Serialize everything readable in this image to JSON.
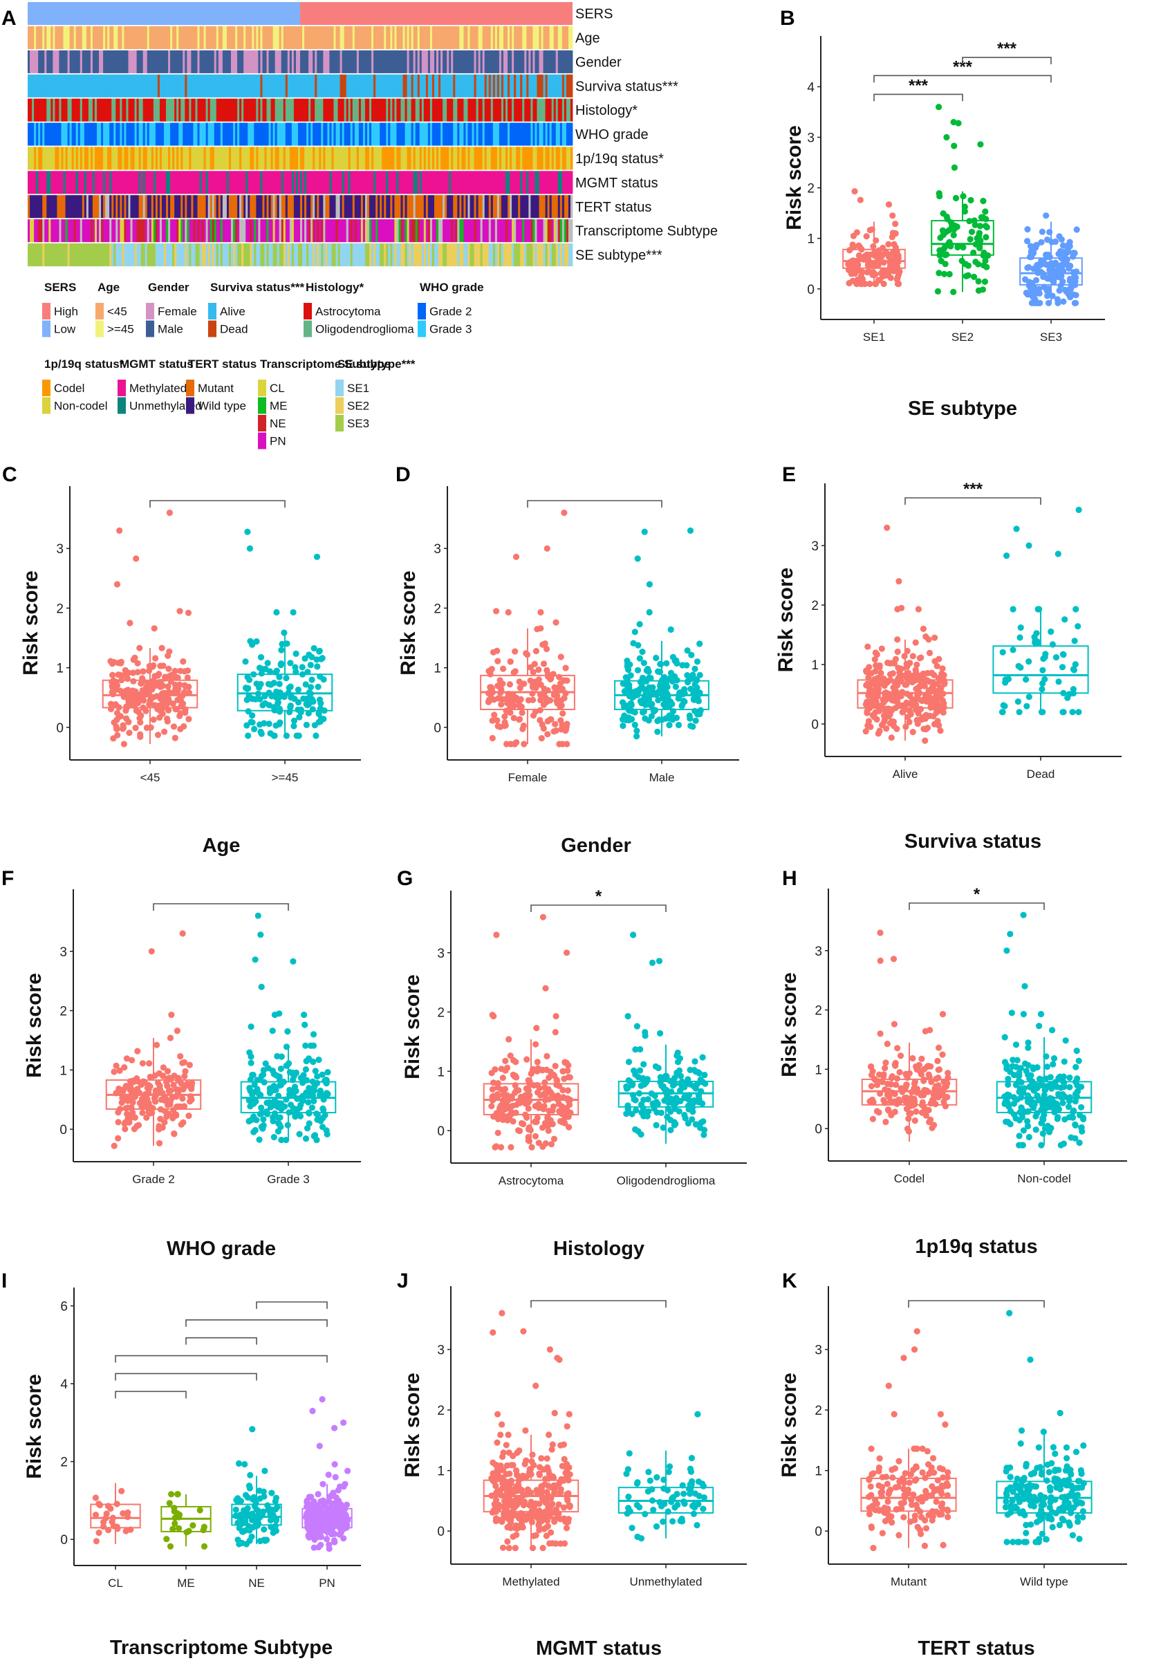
{
  "figure": {
    "panel_labels": [
      "A",
      "B",
      "C",
      "D",
      "E",
      "F",
      "G",
      "H",
      "I",
      "J",
      "K"
    ]
  },
  "chart_data": [
    {
      "panel": "A",
      "type": "heatmap",
      "title": "",
      "rows": [
        {
          "label": "SERS",
          "significance": ""
        },
        {
          "label": "Age",
          "significance": ""
        },
        {
          "label": "Gender",
          "significance": ""
        },
        {
          "label": "Surviva status",
          "significance": "***"
        },
        {
          "label": "Histology",
          "significance": "*"
        },
        {
          "label": "WHO grade",
          "significance": ""
        },
        {
          "label": "1p/19q status",
          "significance": "*"
        },
        {
          "label": "MGMT status",
          "significance": ""
        },
        {
          "label": "TERT status",
          "significance": ""
        },
        {
          "label": "Transcriptome Subtype",
          "significance": ""
        },
        {
          "label": "SE subtype",
          "significance": "***"
        }
      ],
      "legend": [
        {
          "title": "SERS",
          "items": [
            {
              "label": "High",
              "color": "#F87E7E"
            },
            {
              "label": "Low",
              "color": "#80B1FB"
            }
          ]
        },
        {
          "title": "Age",
          "items": [
            {
              "label": "<45",
              "color": "#F7A86C"
            },
            {
              "label": ">=45",
              "color": "#F2F27B"
            }
          ]
        },
        {
          "title": "Gender",
          "items": [
            {
              "label": "Female",
              "color": "#D493C5"
            },
            {
              "label": "Male",
              "color": "#3C5E95"
            }
          ]
        },
        {
          "title": "Surviva status***",
          "items": [
            {
              "label": "Alive",
              "color": "#33BAEE"
            },
            {
              "label": "Dead",
              "color": "#C9440F"
            }
          ]
        },
        {
          "title": "Histology*",
          "items": [
            {
              "label": "Astrocytoma",
              "color": "#DE100D"
            },
            {
              "label": "Oligodendroglioma",
              "color": "#64B585"
            }
          ]
        },
        {
          "title": "WHO grade",
          "items": [
            {
              "label": "Grade 2",
              "color": "#0065F9"
            },
            {
              "label": "Grade 3",
              "color": "#2FCAFD"
            }
          ]
        },
        {
          "title": "1p/19q status*",
          "items": [
            {
              "label": "Codel",
              "color": "#FD9900"
            },
            {
              "label": "Non-codel",
              "color": "#DCD23B"
            }
          ]
        },
        {
          "title": "MGMT status",
          "items": [
            {
              "label": "Methylated",
              "color": "#EC1293"
            },
            {
              "label": "Unmethylated",
              "color": "#0D857C"
            }
          ]
        },
        {
          "title": "TERT status",
          "items": [
            {
              "label": "Mutant",
              "color": "#E66A05"
            },
            {
              "label": "Wild type",
              "color": "#3A1A80"
            }
          ]
        },
        {
          "title": "Transcriptome Subtype",
          "items": [
            {
              "label": "CL",
              "color": "#DCD43C"
            },
            {
              "label": "ME",
              "color": "#0DBB22"
            },
            {
              "label": "NE",
              "color": "#D0232A"
            },
            {
              "label": "PN",
              "color": "#D90FC0"
            }
          ]
        },
        {
          "title": "SE subtype***",
          "items": [
            {
              "label": "SE1",
              "color": "#92D5F0"
            },
            {
              "label": "SE2",
              "color": "#ECCE5C"
            },
            {
              "label": "SE3",
              "color": "#A3CC4B"
            }
          ]
        }
      ],
      "sers_split": {
        "low_fraction": 0.5,
        "order": [
          "Low",
          "High"
        ]
      }
    },
    {
      "panel": "B",
      "type": "box",
      "xlabel": "SE subtype",
      "ylabel": "Risk score",
      "categories": [
        "SE1",
        "SE2",
        "SE3"
      ],
      "colors": [
        "#F8766D",
        "#00BA38",
        "#619CFF"
      ],
      "yticks": [
        0,
        1,
        2,
        3,
        4
      ],
      "ylim": [
        -0.55,
        4.95
      ],
      "boxes": [
        {
          "q1": 0.41,
          "median": 0.55,
          "q3": 0.78,
          "whisker_low": 0.1,
          "whisker_high": 1.33
        },
        {
          "q1": 0.67,
          "median": 0.89,
          "q3": 1.35,
          "whisker_low": -0.06,
          "whisker_high": 1.93
        },
        {
          "q1": 0.08,
          "median": 0.31,
          "q3": 0.61,
          "whisker_low": -0.28,
          "whisker_high": 1.33
        }
      ],
      "outliers": [
        [
          1.45,
          1.67,
          1.76,
          1.93
        ],
        [
          2.4,
          2.83,
          2.86,
          3.0,
          3.28,
          3.3,
          3.6
        ],
        [
          1.45
        ]
      ],
      "n_points": [
        140,
        85,
        150
      ],
      "comparisons": [
        {
          "from": 0,
          "to": 1,
          "label": "***",
          "level": 1
        },
        {
          "from": 0,
          "to": 2,
          "label": "***",
          "level": 2
        },
        {
          "from": 1,
          "to": 2,
          "label": "***",
          "level": 3
        }
      ]
    },
    {
      "panel": "C",
      "type": "box",
      "xlabel": "Age",
      "ylabel": "Risk score",
      "categories": [
        "<45",
        ">=45"
      ],
      "colors": [
        "#F8766D",
        "#00BFC4"
      ],
      "yticks": [
        0,
        1,
        2,
        3
      ],
      "ylim": [
        -0.5,
        4.0
      ],
      "boxes": [
        {
          "q1": 0.33,
          "median": 0.54,
          "q3": 0.79,
          "whisker_low": -0.28,
          "whisker_high": 1.33
        },
        {
          "q1": 0.28,
          "median": 0.57,
          "q3": 0.89,
          "whisker_low": -0.14,
          "whisker_high": 1.63
        }
      ],
      "outliers": [
        [
          1.66,
          1.75,
          1.92,
          1.95,
          2.4,
          2.83,
          3.3,
          3.6
        ],
        [
          1.93,
          1.93,
          2.86,
          3.0,
          3.28
        ]
      ],
      "n_points": [
        230,
        150
      ],
      "comparisons": [
        {
          "from": 0,
          "to": 1,
          "label": "",
          "level": 1
        }
      ]
    },
    {
      "panel": "D",
      "type": "box",
      "xlabel": "Gender",
      "ylabel": "Risk score",
      "categories": [
        "Female",
        "Male"
      ],
      "colors": [
        "#F8766D",
        "#00BFC4"
      ],
      "yticks": [
        0,
        1,
        2,
        3
      ],
      "ylim": [
        -0.5,
        4.0
      ],
      "boxes": [
        {
          "q1": 0.3,
          "median": 0.59,
          "q3": 0.87,
          "whisker_low": -0.28,
          "whisker_high": 1.66
        },
        {
          "q1": 0.3,
          "median": 0.54,
          "q3": 0.78,
          "whisker_low": -0.15,
          "whisker_high": 1.45
        }
      ],
      "outliers": [
        [
          1.76,
          1.93,
          1.93,
          1.95,
          2.86,
          3.0,
          3.6
        ],
        [
          1.6,
          1.64,
          1.73,
          1.93,
          2.4,
          2.83,
          3.28,
          3.3
        ]
      ],
      "n_points": [
        170,
        210
      ],
      "comparisons": [
        {
          "from": 0,
          "to": 1,
          "label": "",
          "level": 1
        }
      ]
    },
    {
      "panel": "E",
      "type": "box",
      "xlabel": "Surviva status",
      "ylabel": "Risk score",
      "categories": [
        "Alive",
        "Dead"
      ],
      "colors": [
        "#F8766D",
        "#00BFC4"
      ],
      "yticks": [
        0,
        1,
        2,
        3
      ],
      "ylim": [
        -0.5,
        4.0
      ],
      "boxes": [
        {
          "q1": 0.27,
          "median": 0.52,
          "q3": 0.74,
          "whisker_low": -0.28,
          "whisker_high": 1.42
        },
        {
          "q1": 0.52,
          "median": 0.82,
          "q3": 1.31,
          "whisker_low": 0.2,
          "whisker_high": 1.93
        }
      ],
      "outliers": [
        [
          1.45,
          1.47,
          1.6,
          1.93,
          1.93,
          1.95,
          2.4,
          3.3
        ],
        [
          2.83,
          2.86,
          3.0,
          3.28,
          3.6
        ]
      ],
      "n_points": [
        310,
        60
      ],
      "comparisons": [
        {
          "from": 0,
          "to": 1,
          "label": "***",
          "level": 1
        }
      ]
    },
    {
      "panel": "F",
      "type": "box",
      "xlabel": "WHO grade",
      "ylabel": "Risk score",
      "categories": [
        "Grade 2",
        "Grade 3"
      ],
      "colors": [
        "#F8766D",
        "#00BFC4"
      ],
      "yticks": [
        0,
        1,
        2,
        3
      ],
      "ylim": [
        -0.5,
        4.0
      ],
      "boxes": [
        {
          "q1": 0.34,
          "median": 0.58,
          "q3": 0.83,
          "whisker_low": -0.28,
          "whisker_high": 1.54
        },
        {
          "q1": 0.28,
          "median": 0.53,
          "q3": 0.8,
          "whisker_low": -0.18,
          "whisker_high": 1.41
        }
      ],
      "outliers": [
        [
          1.66,
          1.93,
          3.0,
          3.3
        ],
        [
          1.6,
          1.65,
          1.66,
          1.73,
          1.76,
          1.93,
          1.93,
          1.95,
          2.4,
          2.83,
          2.86,
          3.28,
          3.6
        ]
      ],
      "n_points": [
        190,
        190
      ],
      "comparisons": [
        {
          "from": 0,
          "to": 1,
          "label": "",
          "level": 1
        }
      ]
    },
    {
      "panel": "G",
      "type": "box",
      "xlabel": "Histology",
      "ylabel": "Risk score",
      "categories": [
        "Astrocytoma",
        "Oligodendroglioma"
      ],
      "colors": [
        "#F8766D",
        "#00BFC4"
      ],
      "yticks": [
        0,
        1,
        2,
        3
      ],
      "ylim": [
        -0.5,
        4.0
      ],
      "boxes": [
        {
          "q1": 0.27,
          "median": 0.52,
          "q3": 0.79,
          "whisker_low": -0.28,
          "whisker_high": 1.54
        },
        {
          "q1": 0.4,
          "median": 0.63,
          "q3": 0.83,
          "whisker_low": -0.22,
          "whisker_high": 1.45
        }
      ],
      "outliers": [
        [
          1.66,
          1.73,
          1.93,
          1.93,
          1.95,
          2.4,
          3.0,
          3.3,
          3.6
        ],
        [
          1.6,
          1.64,
          1.66,
          1.76,
          1.93,
          2.83,
          2.86,
          3.3
        ]
      ],
      "n_points": [
        210,
        160
      ],
      "comparisons": [
        {
          "from": 0,
          "to": 1,
          "label": "*",
          "level": 1
        }
      ]
    },
    {
      "panel": "H",
      "type": "box",
      "xlabel": "1p19q status",
      "ylabel": "Risk score",
      "categories": [
        "Codel",
        "Non-codel"
      ],
      "colors": [
        "#F8766D",
        "#00BFC4"
      ],
      "yticks": [
        0,
        1,
        2,
        3
      ],
      "ylim": [
        -0.5,
        4.0
      ],
      "boxes": [
        {
          "q1": 0.4,
          "median": 0.63,
          "q3": 0.83,
          "whisker_low": -0.22,
          "whisker_high": 1.45
        },
        {
          "q1": 0.27,
          "median": 0.52,
          "q3": 0.79,
          "whisker_low": -0.28,
          "whisker_high": 1.54
        }
      ],
      "outliers": [
        [
          1.6,
          1.64,
          1.66,
          1.76,
          1.93,
          2.83,
          2.86,
          3.3
        ],
        [
          1.66,
          1.73,
          1.93,
          1.93,
          1.95,
          2.4,
          3.0,
          3.28,
          3.6
        ]
      ],
      "n_points": [
        160,
        210
      ],
      "comparisons": [
        {
          "from": 0,
          "to": 1,
          "label": "*",
          "level": 1
        }
      ]
    },
    {
      "panel": "I",
      "type": "box",
      "xlabel": "Transcriptome Subtype",
      "ylabel": "Risk score",
      "categories": [
        "CL",
        "ME",
        "NE",
        "PN"
      ],
      "colors": [
        "#F8766D",
        "#7CAE00",
        "#00BFC4",
        "#C77CFF"
      ],
      "yticks": [
        0,
        2,
        4,
        6
      ],
      "ylim": [
        -0.6,
        6.4
      ],
      "boxes": [
        {
          "q1": 0.3,
          "median": 0.55,
          "q3": 0.9,
          "whisker_low": -0.12,
          "whisker_high": 1.45
        },
        {
          "q1": 0.2,
          "median": 0.53,
          "q3": 0.84,
          "whisker_low": -0.18,
          "whisker_high": 1.16
        },
        {
          "q1": 0.37,
          "median": 0.58,
          "q3": 0.9,
          "whisker_low": -0.12,
          "whisker_high": 1.63
        },
        {
          "q1": 0.3,
          "median": 0.55,
          "q3": 0.79,
          "whisker_low": -0.28,
          "whisker_high": 1.42
        }
      ],
      "outliers": [
        [],
        [],
        [
          1.65,
          1.76,
          1.93,
          1.95,
          2.83
        ],
        [
          1.6,
          1.66,
          1.76,
          1.93,
          2.4,
          2.86,
          3.0,
          3.3,
          3.6
        ]
      ],
      "n_points": [
        25,
        22,
        90,
        200
      ],
      "comparisons": [
        {
          "from": 0,
          "to": 1,
          "label": "",
          "level": 1
        },
        {
          "from": 0,
          "to": 2,
          "label": "",
          "level": 2
        },
        {
          "from": 0,
          "to": 3,
          "label": "",
          "level": 3
        },
        {
          "from": 1,
          "to": 2,
          "label": "",
          "level": 4
        },
        {
          "from": 1,
          "to": 3,
          "label": "",
          "level": 5
        },
        {
          "from": 2,
          "to": 3,
          "label": "",
          "level": 6
        }
      ]
    },
    {
      "panel": "J",
      "type": "box",
      "xlabel": "MGMT status",
      "ylabel": "Risk score",
      "categories": [
        "Methylated",
        "Unmethylated"
      ],
      "colors": [
        "#F8766D",
        "#00BFC4"
      ],
      "yticks": [
        0,
        1,
        2,
        3
      ],
      "ylim": [
        -0.5,
        4.0
      ],
      "boxes": [
        {
          "q1": 0.32,
          "median": 0.58,
          "q3": 0.84,
          "whisker_low": -0.28,
          "whisker_high": 1.59
        },
        {
          "q1": 0.3,
          "median": 0.5,
          "q3": 0.72,
          "whisker_low": -0.12,
          "whisker_high": 1.33
        }
      ],
      "outliers": [
        [
          1.66,
          1.73,
          1.76,
          1.93,
          1.93,
          1.95,
          2.4,
          2.83,
          2.86,
          3.0,
          3.28,
          3.3,
          3.6
        ],
        [
          1.93
        ]
      ],
      "n_points": [
        300,
        70
      ],
      "comparisons": [
        {
          "from": 0,
          "to": 1,
          "label": "",
          "level": 1
        }
      ]
    },
    {
      "panel": "K",
      "type": "box",
      "xlabel": "TERT status",
      "ylabel": "Risk score",
      "categories": [
        "Mutant",
        "Wild type"
      ],
      "colors": [
        "#F8766D",
        "#00BFC4"
      ],
      "yticks": [
        0,
        1,
        2,
        3
      ],
      "ylim": [
        -0.5,
        4.0
      ],
      "boxes": [
        {
          "q1": 0.33,
          "median": 0.55,
          "q3": 0.87,
          "whisker_low": -0.28,
          "whisker_high": 1.36
        },
        {
          "q1": 0.3,
          "median": 0.55,
          "q3": 0.82,
          "whisker_low": -0.18,
          "whisker_high": 1.59
        }
      ],
      "outliers": [
        [
          1.76,
          1.93,
          1.93,
          2.4,
          2.86,
          3.0,
          3.3
        ],
        [
          1.64,
          1.66,
          1.95,
          2.83,
          3.6
        ]
      ],
      "n_points": [
        150,
        190
      ],
      "comparisons": [
        {
          "from": 0,
          "to": 1,
          "label": "",
          "level": 1
        }
      ]
    }
  ]
}
